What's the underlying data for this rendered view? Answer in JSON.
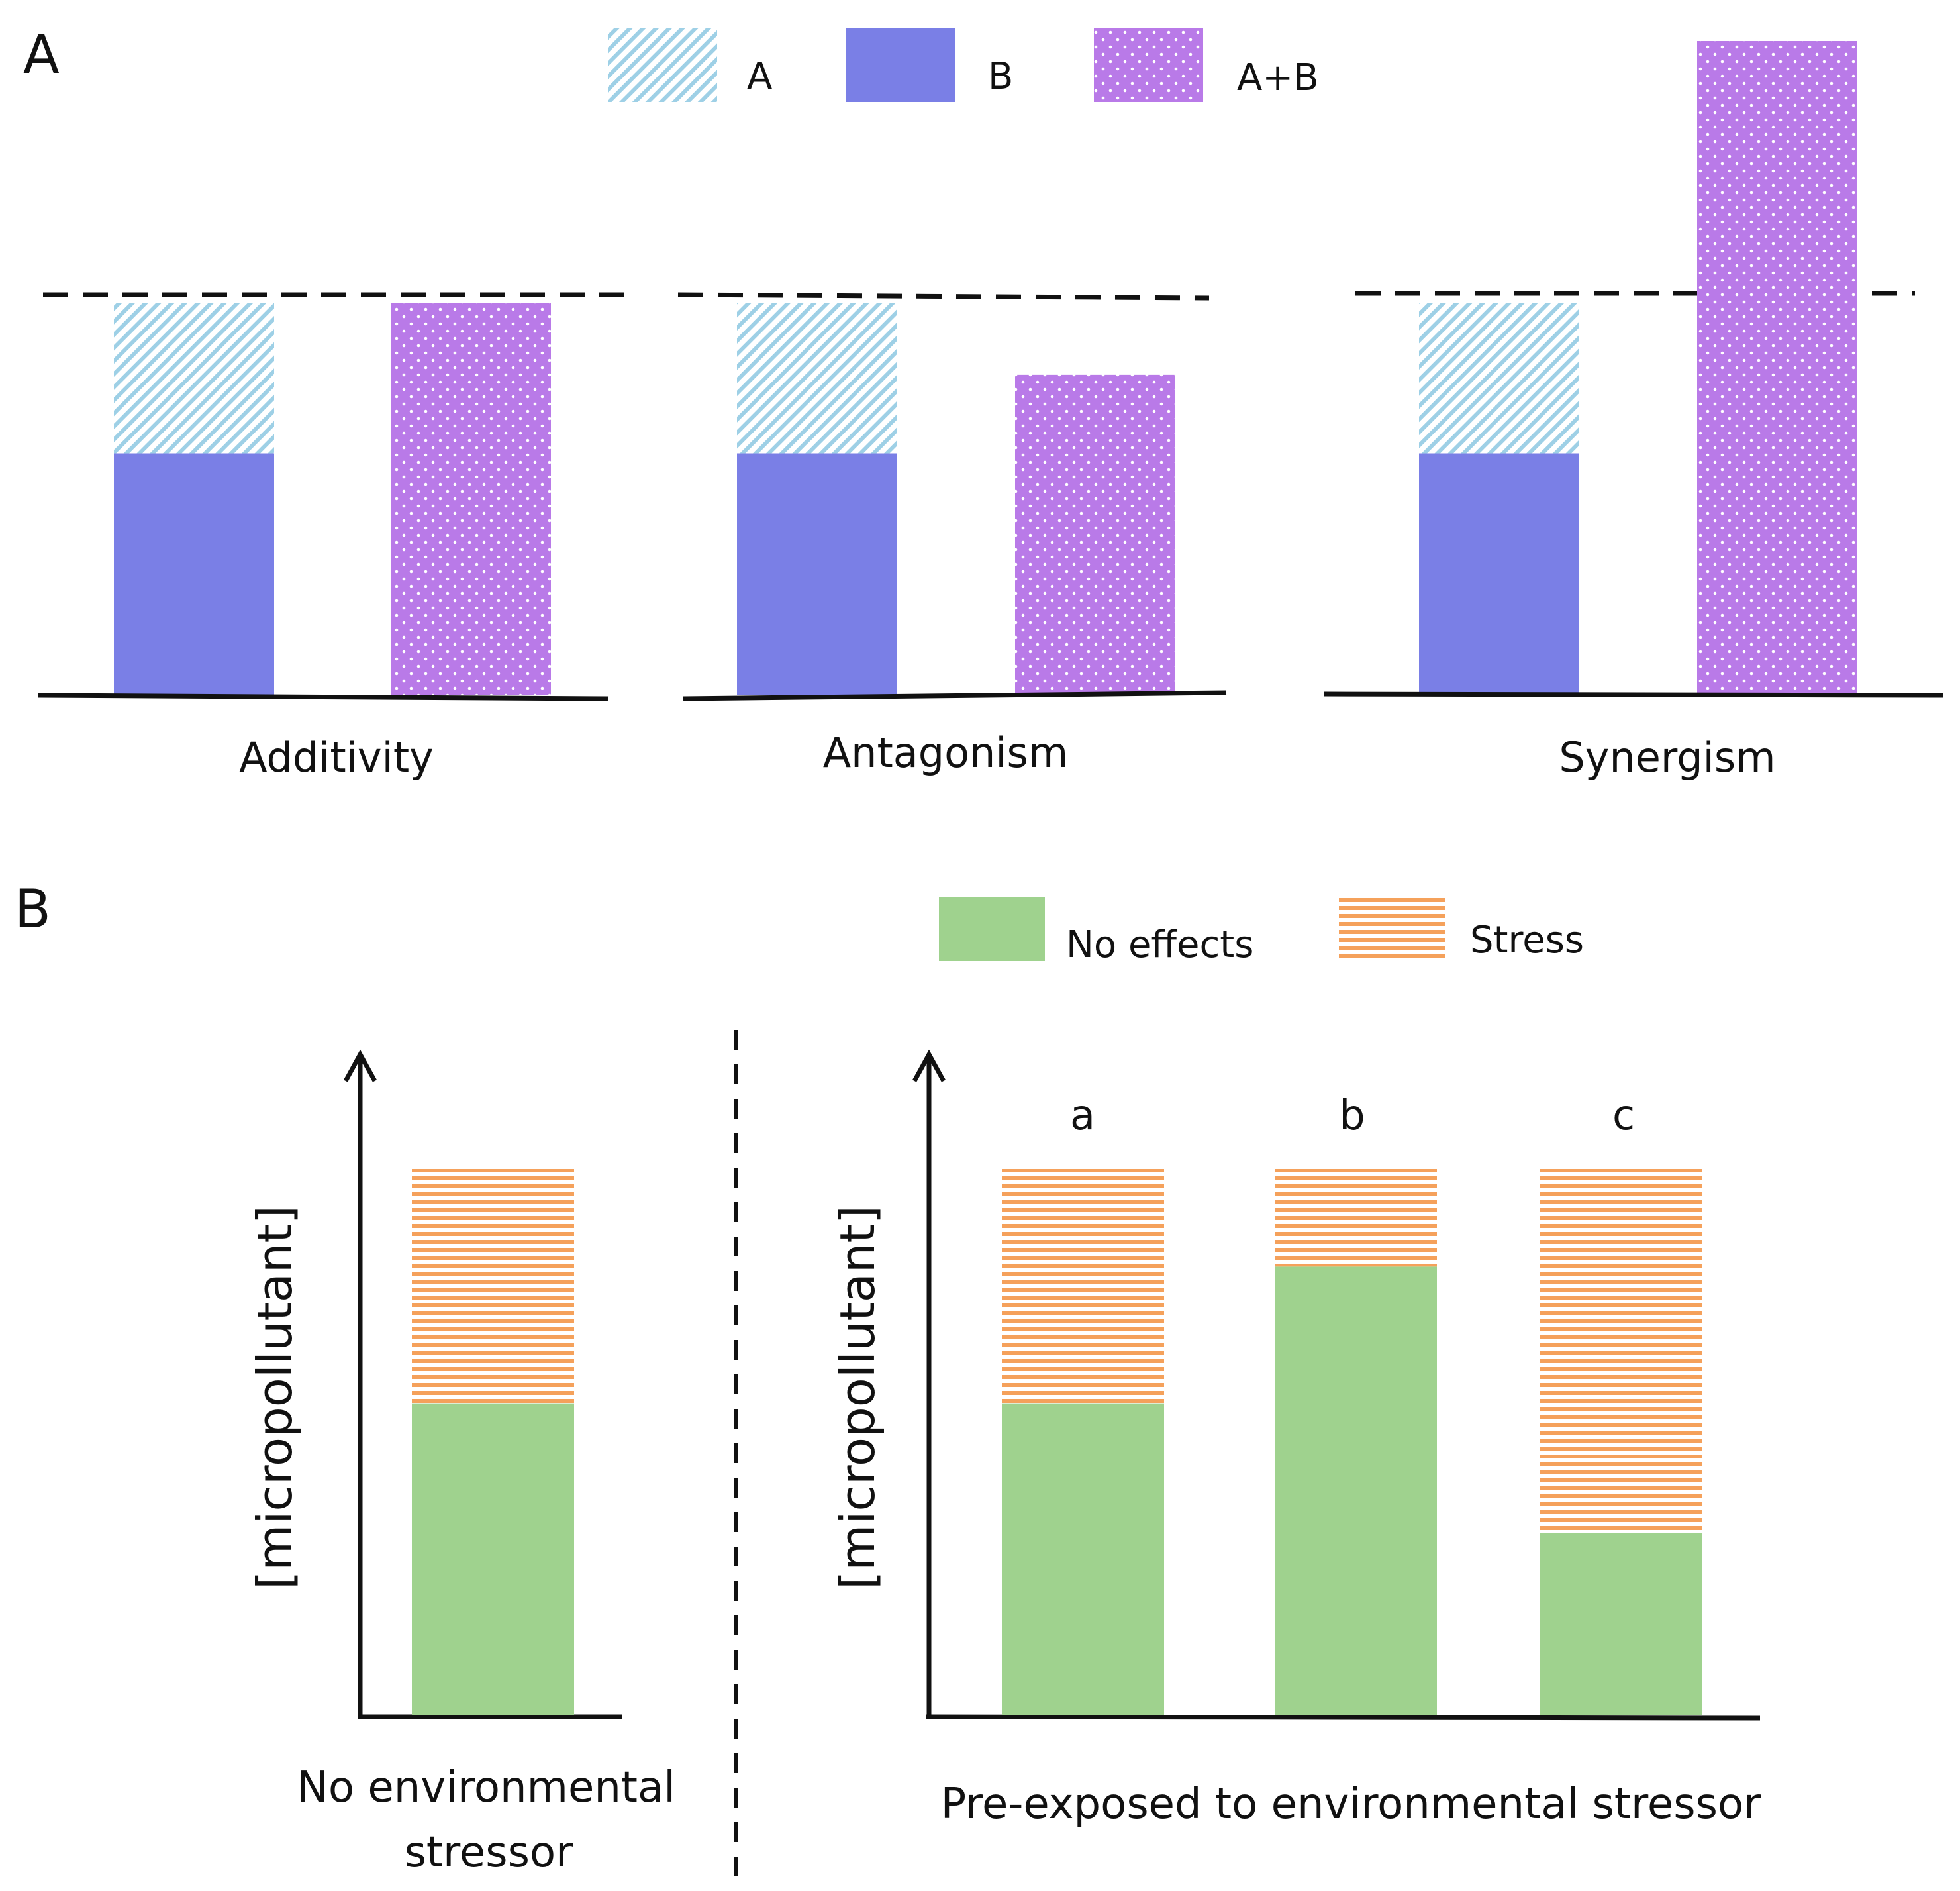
{
  "colors": {
    "a_hatch": "#9ed0e6",
    "b_fill": "#7a7fe6",
    "ab_fill": "#b97ae8",
    "no_effects": "#9fd28e",
    "stress_line": "#f5a15b",
    "axis": "#111111"
  },
  "panel_a": {
    "label": "A",
    "legend": [
      {
        "key": "a",
        "label": "A"
      },
      {
        "key": "b",
        "label": "B"
      },
      {
        "key": "ab",
        "label": "A+B"
      }
    ],
    "chart_data": {
      "type": "bar",
      "scale_max": 10,
      "reference_line": 6,
      "groups": [
        {
          "caption": "Additivity",
          "stack": {
            "B": 3.7,
            "A": 2.3
          },
          "combined": 6.0
        },
        {
          "caption": "Antagonism",
          "stack": {
            "B": 3.7,
            "A": 2.3
          },
          "combined": 4.9
        },
        {
          "caption": "Synergism",
          "stack": {
            "B": 3.7,
            "A": 2.3
          },
          "combined": 10.0
        }
      ]
    }
  },
  "panel_b": {
    "label": "B",
    "legend": [
      {
        "key": "no_effects",
        "label": "No effects"
      },
      {
        "key": "stress",
        "label": "Stress"
      }
    ],
    "left": {
      "ylabel": "[micropollutant]",
      "caption_lines": [
        "No environmental",
        "stressor"
      ],
      "chart_data": {
        "type": "bar",
        "scale_max": 10,
        "bars": [
          {
            "label": "",
            "no_effects": 4.8,
            "stress": 3.6
          }
        ]
      }
    },
    "right": {
      "ylabel": "[micropollutant]",
      "caption": "Pre-exposed to environmental stressor",
      "chart_data": {
        "type": "bar",
        "scale_max": 10,
        "bars": [
          {
            "label": "a",
            "no_effects": 4.8,
            "stress": 3.6
          },
          {
            "label": "b",
            "no_effects": 6.9,
            "stress": 1.5
          },
          {
            "label": "c",
            "no_effects": 2.8,
            "stress": 5.6
          }
        ]
      }
    }
  }
}
